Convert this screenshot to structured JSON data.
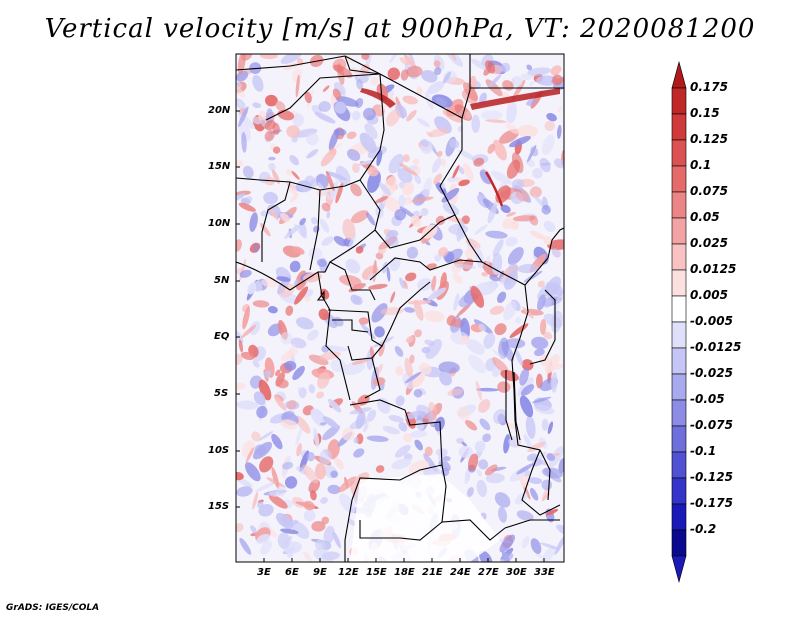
{
  "title": "Vertical velocity [m/s] at 900hPa, VT: 2020081200",
  "footer": "GrADS: IGES/COLA",
  "map": {
    "lat_labels": [
      "20N",
      "15N",
      "10N",
      "5N",
      "EQ",
      "5S",
      "10S",
      "15S"
    ],
    "lon_labels": [
      "3E",
      "6E",
      "9E",
      "12E",
      "15E",
      "18E",
      "21E",
      "24E",
      "27E",
      "30E",
      "33E"
    ]
  },
  "colorbar": {
    "labels": [
      "0.175",
      "0.15",
      "0.125",
      "0.1",
      "0.075",
      "0.05",
      "0.025",
      "0.0125",
      "0.005",
      "-0.005",
      "-0.0125",
      "-0.025",
      "-0.05",
      "-0.075",
      "-0.1",
      "-0.125",
      "-0.175",
      "-0.2"
    ],
    "colors": [
      "#b01a1a",
      "#c02828",
      "#cf3a3a",
      "#dc5252",
      "#e56a6a",
      "#ec8585",
      "#f3a3a3",
      "#f8c2c2",
      "#fce0e0",
      "#ffffff",
      "#e0e0fb",
      "#c6c6f6",
      "#a9a9ee",
      "#8c8ce6",
      "#6e6edd",
      "#5151d3",
      "#3434c8",
      "#1a1ab8",
      "#0a0a90",
      "#1a1ab8"
    ]
  }
}
